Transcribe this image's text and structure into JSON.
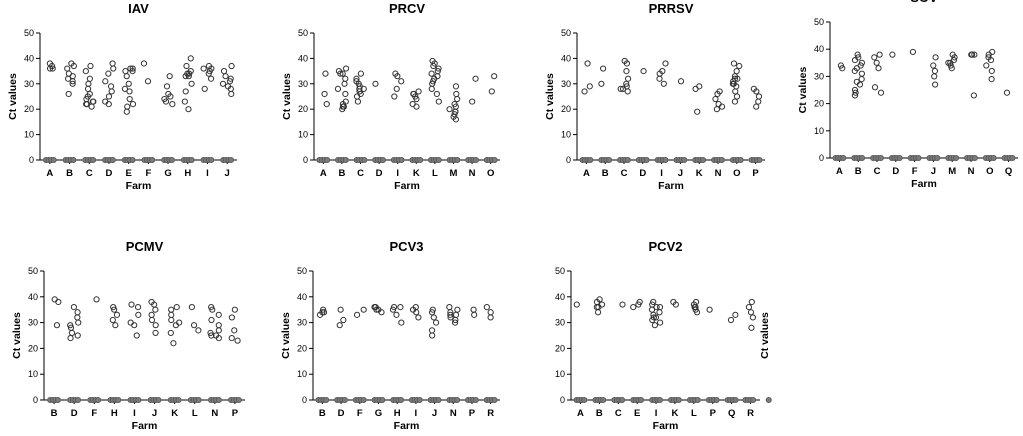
{
  "chart_data": [
    {
      "type": "scatter",
      "title": "IAV",
      "xlabel": "Farm",
      "ylabel": "Ct values",
      "ylim": [
        0,
        50
      ],
      "yticks": [
        "0",
        "10",
        "20",
        "30",
        "40",
        "50"
      ],
      "categories": [
        "A",
        "B",
        "C",
        "D",
        "E",
        "F",
        "G",
        "H",
        "I",
        "J"
      ],
      "values": [
        [
          0,
          0,
          0,
          0,
          36,
          37,
          38,
          36
        ],
        [
          0,
          0,
          0,
          0,
          26,
          30,
          32,
          34,
          36,
          37,
          38,
          33,
          31
        ],
        [
          0,
          0,
          0,
          0,
          21,
          22,
          23,
          24,
          25,
          26,
          28,
          30,
          32,
          35,
          37,
          23,
          22
        ],
        [
          0,
          0,
          0,
          0,
          23,
          25,
          27,
          29,
          31,
          34,
          36,
          38,
          22
        ],
        [
          0,
          0,
          0,
          0,
          19,
          21,
          24,
          27,
          30,
          33,
          35,
          36,
          35,
          36,
          28,
          22
        ],
        [
          0,
          0,
          0,
          0,
          31,
          38
        ],
        [
          0,
          0,
          0,
          0,
          22,
          23,
          24,
          26,
          29,
          33,
          25
        ],
        [
          0,
          0,
          0,
          0,
          20,
          23,
          27,
          30,
          33,
          34,
          35,
          37,
          40,
          34,
          33
        ],
        [
          0,
          0,
          0,
          0,
          28,
          32,
          34,
          35,
          36,
          37,
          36
        ],
        [
          0,
          0,
          0,
          0,
          26,
          28,
          30,
          31,
          32,
          33,
          35,
          37,
          29
        ]
      ]
    },
    {
      "type": "scatter",
      "title": "PRCV",
      "xlabel": "Farm",
      "ylabel": "Ct values",
      "ylim": [
        0,
        50
      ],
      "yticks": [
        "0",
        "10",
        "20",
        "30",
        "40",
        "50"
      ],
      "categories": [
        "A",
        "B",
        "C",
        "D",
        "I",
        "K",
        "L",
        "M",
        "N",
        "O"
      ],
      "values": [
        [
          0,
          0,
          0,
          0,
          22,
          26,
          34
        ],
        [
          0,
          0,
          0,
          0,
          20,
          21,
          22,
          23,
          26,
          28,
          30,
          32,
          34,
          35,
          36,
          34,
          21
        ],
        [
          0,
          0,
          0,
          0,
          23,
          25,
          27,
          28,
          29,
          30,
          31,
          32,
          34,
          26,
          28
        ],
        [
          0,
          0,
          0,
          0,
          30
        ],
        [
          0,
          0,
          0,
          0,
          25,
          28,
          31,
          33,
          34
        ],
        [
          0,
          0,
          0,
          0,
          21,
          22,
          24,
          25,
          26,
          27,
          26
        ],
        [
          0,
          0,
          0,
          0,
          23,
          26,
          28,
          30,
          32,
          33,
          34,
          35,
          36,
          37,
          38,
          39,
          31
        ],
        [
          0,
          0,
          0,
          0,
          16,
          17,
          18,
          19,
          20,
          21,
          22,
          24,
          26,
          29,
          19
        ],
        [
          0,
          0,
          0,
          0,
          23,
          32
        ],
        [
          0,
          0,
          0,
          0,
          27,
          33
        ]
      ]
    },
    {
      "type": "scatter",
      "title": "PRRSV",
      "xlabel": "Farm",
      "ylabel": "Ct values",
      "ylim": [
        0,
        50
      ],
      "yticks": [
        "0",
        "10",
        "20",
        "30",
        "40",
        "50"
      ],
      "categories": [
        "A",
        "B",
        "C",
        "D",
        "I",
        "J",
        "K",
        "N",
        "O",
        "P"
      ],
      "values": [
        [
          0,
          0,
          0,
          0,
          27,
          29,
          38
        ],
        [
          0,
          0,
          0,
          0,
          30,
          36
        ],
        [
          0,
          0,
          0,
          0,
          27,
          28,
          29,
          30,
          32,
          35,
          38,
          39,
          28
        ],
        [
          0,
          0,
          0,
          0,
          35
        ],
        [
          0,
          0,
          0,
          0,
          30,
          32,
          34,
          35,
          38
        ],
        [
          0,
          0,
          0,
          0,
          31
        ],
        [
          0,
          0,
          0,
          0,
          19,
          28,
          29
        ],
        [
          0,
          0,
          0,
          0,
          20,
          21,
          22,
          24,
          26,
          27
        ],
        [
          0,
          0,
          0,
          0,
          23,
          25,
          27,
          29,
          30,
          31,
          32,
          33,
          35,
          37,
          38,
          30,
          32
        ],
        [
          0,
          0,
          0,
          0,
          21,
          23,
          25,
          27,
          28
        ]
      ]
    },
    {
      "type": "scatter",
      "title": "SOV",
      "xlabel": "Farm",
      "ylabel": "Ct values",
      "ylim": [
        0,
        50
      ],
      "yticks": [
        "0",
        "10",
        "20",
        "30",
        "40",
        "50"
      ],
      "categories": [
        "A",
        "B",
        "C",
        "D",
        "F",
        "J",
        "M",
        "N",
        "O",
        "Q"
      ],
      "values": [
        [
          0,
          0,
          0,
          0,
          33,
          34
        ],
        [
          0,
          0,
          0,
          0,
          23,
          24,
          25,
          27,
          29,
          31,
          33,
          34,
          35,
          36,
          37,
          38,
          32,
          28
        ],
        [
          0,
          0,
          0,
          0,
          24,
          26,
          33,
          35,
          37,
          38
        ],
        [
          0,
          0,
          0,
          0,
          38
        ],
        [
          0,
          0,
          0,
          0,
          39
        ],
        [
          0,
          0,
          0,
          0,
          27,
          30,
          32,
          34,
          37
        ],
        [
          0,
          0,
          0,
          0,
          33,
          34,
          35,
          36,
          37,
          38,
          35
        ],
        [
          0,
          0,
          0,
          0,
          23,
          38,
          38,
          38
        ],
        [
          0,
          0,
          0,
          0,
          29,
          32,
          34,
          36,
          37,
          38,
          39
        ],
        [
          0,
          0,
          0,
          0,
          24
        ]
      ]
    },
    {
      "type": "scatter",
      "title": "PCMV",
      "xlabel": "Farm",
      "ylabel": "Ct values",
      "ylim": [
        0,
        50
      ],
      "yticks": [
        "0",
        "10",
        "20",
        "30",
        "40",
        "50"
      ],
      "categories": [
        "B",
        "D",
        "F",
        "H",
        "I",
        "J",
        "K",
        "L",
        "N",
        "P"
      ],
      "values": [
        [
          0,
          0,
          0,
          0,
          29,
          38,
          39
        ],
        [
          0,
          0,
          0,
          0,
          24,
          25,
          26,
          28,
          30,
          32,
          34,
          36,
          29
        ],
        [
          0,
          0,
          0,
          0,
          39
        ],
        [
          0,
          0,
          0,
          0,
          29,
          31,
          33,
          35,
          36
        ],
        [
          0,
          0,
          0,
          0,
          25,
          29,
          30,
          33,
          36,
          37
        ],
        [
          0,
          0,
          0,
          0,
          26,
          29,
          31,
          33,
          35,
          37,
          38
        ],
        [
          0,
          0,
          0,
          0,
          22,
          26,
          29,
          31,
          33,
          35,
          36,
          30
        ],
        [
          0,
          0,
          0,
          0,
          27,
          29,
          36
        ],
        [
          0,
          0,
          0,
          0,
          24,
          25,
          26,
          27,
          29,
          31,
          33,
          35,
          36,
          25
        ],
        [
          0,
          0,
          0,
          0,
          23,
          24,
          27,
          32,
          35
        ]
      ]
    },
    {
      "type": "scatter",
      "title": "PCV3",
      "xlabel": "Farm",
      "ylabel": "Ct values",
      "ylim": [
        0,
        50
      ],
      "yticks": [
        "0",
        "10",
        "20",
        "30",
        "40",
        "50"
      ],
      "categories": [
        "B",
        "D",
        "F",
        "G",
        "H",
        "I",
        "J",
        "N",
        "P",
        "R"
      ],
      "values": [
        [
          0,
          0,
          0,
          0,
          33,
          34,
          35,
          34
        ],
        [
          0,
          0,
          0,
          0,
          29,
          31,
          35
        ],
        [
          0,
          0,
          0,
          0,
          33,
          35
        ],
        [
          0,
          0,
          0,
          0,
          34,
          35,
          36,
          36,
          35
        ],
        [
          0,
          0,
          0,
          0,
          30,
          33,
          35,
          36,
          36
        ],
        [
          0,
          0,
          0,
          0,
          32,
          34,
          36,
          35
        ],
        [
          0,
          0,
          0,
          0,
          25,
          27,
          30,
          32,
          34,
          35
        ],
        [
          0,
          0,
          0,
          0,
          30,
          31,
          32,
          33,
          34,
          35,
          36,
          33
        ],
        [
          0,
          0,
          0,
          0,
          33,
          35
        ],
        [
          0,
          0,
          0,
          0,
          32,
          34,
          36
        ]
      ]
    },
    {
      "type": "scatter",
      "title": "PCV2",
      "xlabel": "Farm",
      "ylabel": "Ct values",
      "ylim": [
        0,
        50
      ],
      "yticks": [
        "0",
        "10",
        "20",
        "30",
        "40",
        "50"
      ],
      "categories": [
        "A",
        "B",
        "C",
        "E",
        "I",
        "K",
        "L",
        "P",
        "Q",
        "R"
      ],
      "values": [
        [
          0,
          0,
          0,
          0,
          37
        ],
        [
          0,
          0,
          0,
          0,
          34,
          36,
          37,
          38,
          39,
          36
        ],
        [
          0,
          0,
          0,
          0,
          37
        ],
        [
          0,
          0,
          0,
          0,
          36,
          37,
          38
        ],
        [
          0,
          0,
          0,
          0,
          29,
          30,
          31,
          32,
          33,
          34,
          35,
          36,
          37,
          38,
          36,
          32
        ],
        [
          0,
          0,
          0,
          0,
          37,
          38
        ],
        [
          0,
          0,
          0,
          0,
          34,
          35,
          36,
          37,
          38,
          36
        ],
        [
          0,
          0,
          0,
          0,
          35
        ],
        [
          0,
          0,
          0,
          0,
          31,
          33
        ],
        [
          0,
          0,
          0,
          0,
          28,
          32,
          34,
          36,
          38,
          0
        ]
      ]
    }
  ]
}
